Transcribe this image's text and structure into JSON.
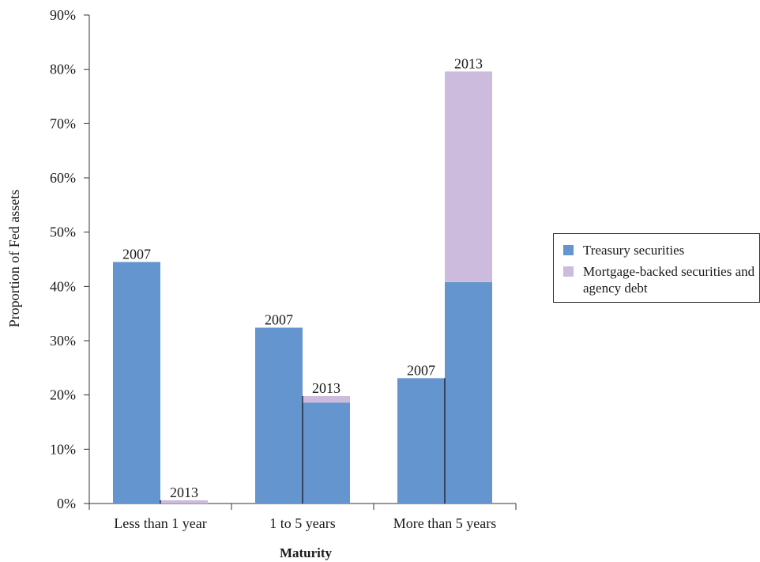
{
  "chart_data": {
    "type": "bar",
    "stacked": true,
    "title": "",
    "xlabel": "Maturity",
    "ylabel": "Proportion of Fed assets",
    "ylim": [
      0,
      90
    ],
    "y_ticks": [
      "0%",
      "10%",
      "20%",
      "30%",
      "40%",
      "50%",
      "60%",
      "70%",
      "80%",
      "90%"
    ],
    "categories": [
      "Less than 1 year",
      "1 to 5 years",
      "More than 5 years"
    ],
    "bar_labels": [
      "2007",
      "2013"
    ],
    "series": [
      {
        "name": "Treasury securities",
        "color": "#6495CF",
        "values_2007": [
          44.5,
          32.4,
          23.1
        ],
        "values_2013": [
          0.0,
          18.6,
          40.8
        ]
      },
      {
        "name": "Mortgage-backed securities and agency debt",
        "color": "#CDBBDD",
        "values_2007": [
          0.0,
          0.0,
          0.0
        ],
        "values_2013": [
          0.6,
          1.2,
          38.8
        ]
      }
    ],
    "legend_position": "right",
    "grid": false
  }
}
